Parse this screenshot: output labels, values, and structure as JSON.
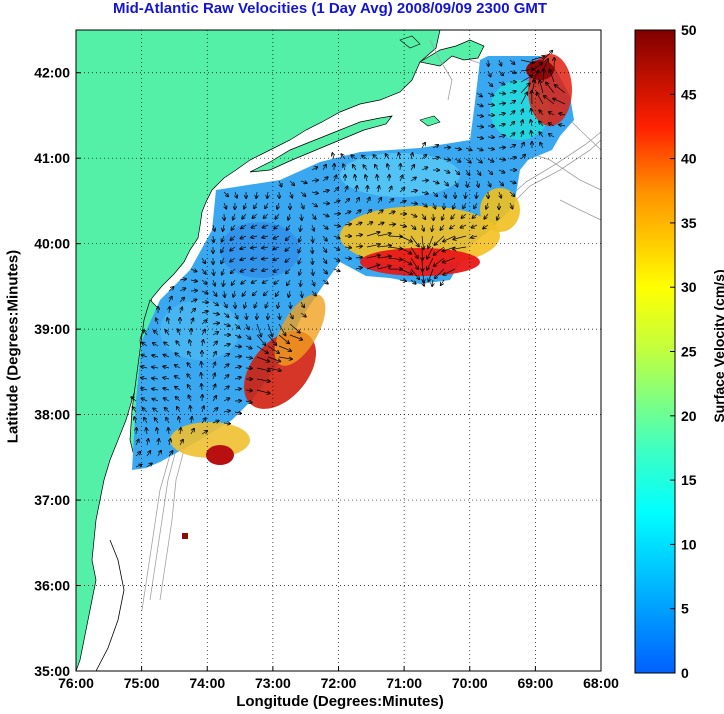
{
  "title": "Mid-Atlantic Raw Velocities (1 Day Avg) 2008/09/09 2300 GMT",
  "xlabel": "Longitude (Degrees:Minutes)",
  "ylabel": "Latitude (Degrees:Minutes)",
  "colorbar": {
    "label": "Surface Velocity (cm/s)",
    "min": 0,
    "max": 50,
    "ticks": [
      "0",
      "5",
      "10",
      "15",
      "20",
      "25",
      "30",
      "35",
      "40",
      "45",
      "50"
    ]
  },
  "axes": {
    "lon_ticks": [
      "76:00",
      "75:00",
      "74:00",
      "73:00",
      "72:00",
      "71:00",
      "70:00",
      "69:00",
      "68:00"
    ],
    "lat_ticks": [
      "35:00",
      "36:00",
      "37:00",
      "38:00",
      "39:00",
      "40:00",
      "41:00",
      "42:00"
    ],
    "lon_range": [
      -76,
      -68
    ],
    "lat_range": [
      35,
      42.5
    ],
    "grid": "dotted"
  },
  "colors": {
    "land": "#55f0a8",
    "ocean": "#ffffff",
    "title": "#1414d8",
    "bathymetry": "#a0a0a0"
  }
}
